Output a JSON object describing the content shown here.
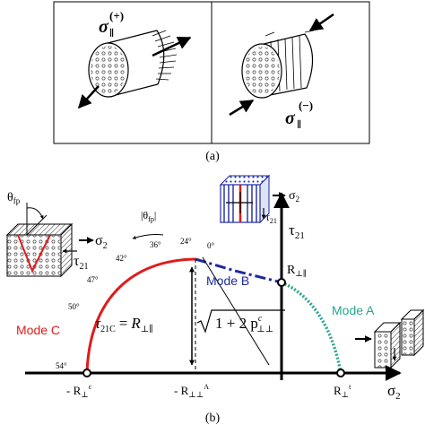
{
  "panel_a": {
    "left_label": "σ",
    "left_sub": "∥",
    "left_sup": "(+)",
    "right_label": "σ",
    "right_sub": "∥",
    "right_sup": "(−)",
    "caption": "(a)"
  },
  "panel_b": {
    "caption": "(b)",
    "theta_fp": "θ",
    "theta_fp_sub": "fp",
    "theta_abs": "|θ",
    "theta_abs_sub": "fp",
    "theta_abs_end": "|",
    "angles": [
      "0°",
      "24°",
      "36°",
      "42°",
      "47°",
      "50°",
      "54°"
    ],
    "left_inset": {
      "sigma": "σ",
      "sigma_sub": "2",
      "tau": "τ",
      "tau_sub": "21"
    },
    "top_inset": {
      "sigma": "σ",
      "sigma_sub": "2",
      "tau": "τ",
      "tau_sub": "21"
    },
    "axes": {
      "y_label": "τ",
      "y_sub": "21",
      "x_label": "σ",
      "x_sub": "2"
    },
    "modes": {
      "A": {
        "label": "Mode A",
        "color": "#2aa58a"
      },
      "B": {
        "label": "Mode B",
        "color": "#1f2a9c"
      },
      "C": {
        "label": "Mode C",
        "color": "#e01b1b"
      }
    },
    "r_perp_par": {
      "main": "R",
      "sub": "⊥∥"
    },
    "x_marks": {
      "left": {
        "main": "- R",
        "sub": "⊥",
        "sup": "c"
      },
      "mid": {
        "main": "- R",
        "sub": "⊥⊥",
        "sup": "A"
      },
      "right": {
        "main": "R",
        "sub": "⊥",
        "sup": "t"
      }
    },
    "formula": {
      "lhs": "τ",
      "lhs_sub": "21C",
      "eq": "=",
      "r": "R",
      "r_sub": "⊥∥",
      "radicand": "1 + 2 p",
      "p_sub": "⊥⊥",
      "p_sup": "c"
    }
  }
}
